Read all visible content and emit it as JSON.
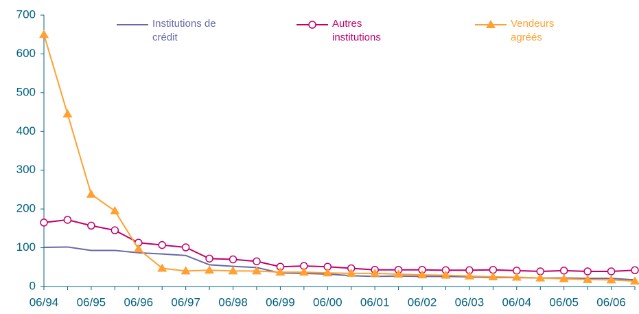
{
  "chart_data": {
    "type": "line",
    "categories": [
      "06/94",
      null,
      "06/95",
      null,
      "06/96",
      null,
      "06/97",
      null,
      "06/98",
      null,
      "06/99",
      null,
      "06/00",
      null,
      "06/01",
      null,
      "06/02",
      null,
      "06/03",
      null,
      "06/04",
      null,
      "06/05",
      null,
      "06/06",
      null
    ],
    "series": [
      {
        "name": "Institutions de crédit",
        "color": "#6868a8",
        "marker": "none",
        "values": [
          101,
          102,
          93,
          93,
          87,
          84,
          80,
          56,
          52,
          49,
          35,
          34,
          32,
          28,
          26,
          27,
          26,
          26,
          25,
          23,
          23,
          22,
          22,
          21,
          21,
          17
        ]
      },
      {
        "name": "Autres institutions",
        "color": "#c0006a",
        "marker": "circle",
        "values": [
          165,
          172,
          157,
          145,
          113,
          107,
          101,
          72,
          70,
          65,
          51,
          53,
          51,
          47,
          43,
          43,
          43,
          42,
          42,
          43,
          41,
          39,
          41,
          39,
          39,
          42
        ]
      },
      {
        "name": "Vendeurs agréés",
        "color": "#ffa030",
        "marker": "triangle",
        "values": [
          650,
          445,
          238,
          195,
          97,
          47,
          40,
          42,
          40,
          40,
          37,
          37,
          35,
          34,
          34,
          32,
          30,
          29,
          27,
          25,
          24,
          22,
          20,
          18,
          17,
          14
        ]
      }
    ],
    "ylim": [
      0,
      700
    ],
    "yticks": [
      0,
      100,
      200,
      300,
      400,
      500,
      600,
      700
    ],
    "grid": false,
    "legend": "top"
  }
}
